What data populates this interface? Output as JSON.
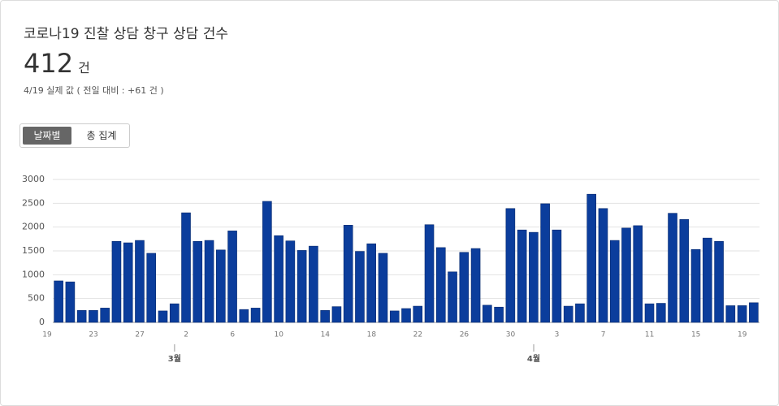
{
  "header": {
    "title": "코로나19 진찰 상담 창구 상담 건수",
    "value": "412",
    "unit": "건",
    "note": "4/19 실제 값 ( 전일 대비 : +61 건 )"
  },
  "tabs": [
    "날짜별",
    "총 집계"
  ],
  "chart_data": {
    "type": "bar",
    "color": "#0b3d9c",
    "grid": true,
    "categories": [
      "19",
      null,
      null,
      null,
      "23",
      null,
      null,
      null,
      "27",
      null,
      null,
      null,
      "2",
      null,
      null,
      null,
      "6",
      null,
      null,
      null,
      "10",
      null,
      null,
      null,
      "14",
      null,
      null,
      null,
      "18",
      null,
      null,
      null,
      "22",
      null,
      null,
      null,
      "26",
      null,
      null,
      null,
      "30",
      null,
      null,
      null,
      "3",
      null,
      null,
      null,
      "7",
      null,
      null,
      null,
      "11",
      null,
      null,
      null,
      "15",
      null,
      null,
      null,
      "19"
    ],
    "month_labels": [
      null,
      null,
      null,
      null,
      null,
      null,
      null,
      null,
      null,
      null,
      null,
      "3월",
      null,
      null,
      null,
      null,
      null,
      null,
      null,
      null,
      null,
      null,
      null,
      null,
      null,
      null,
      null,
      null,
      null,
      null,
      null,
      null,
      null,
      null,
      null,
      null,
      null,
      null,
      null,
      null,
      null,
      null,
      "4월",
      null,
      null,
      null,
      null,
      null,
      null,
      null,
      null,
      null,
      null,
      null,
      null,
      null,
      null,
      null,
      null,
      null,
      null
    ],
    "values": [
      870,
      850,
      250,
      250,
      300,
      1700,
      1670,
      1720,
      1450,
      240,
      390,
      2300,
      1700,
      1720,
      1520,
      1920,
      270,
      300,
      2540,
      1820,
      1710,
      1510,
      1600,
      250,
      330,
      2040,
      1490,
      1650,
      1450,
      240,
      290,
      340,
      2050,
      1570,
      1060,
      1470,
      1550,
      360,
      320,
      2390,
      1940,
      1890,
      2490,
      1940,
      340,
      390,
      2690,
      2390,
      1720,
      1980,
      2030,
      390,
      400,
      2290,
      2160,
      1530,
      1770,
      1700,
      350,
      351,
      412
    ],
    "ylim": [
      0,
      3000
    ],
    "yticks": [
      0,
      500,
      1000,
      1500,
      2000,
      2500,
      3000
    ]
  }
}
